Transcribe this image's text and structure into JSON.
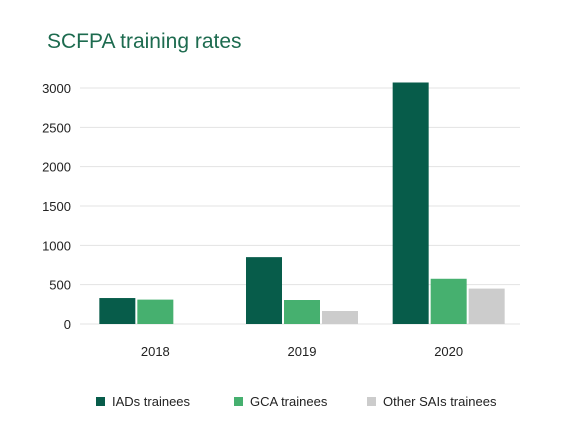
{
  "chart_data": {
    "type": "bar",
    "title": "SCFPA training rates",
    "categories": [
      "2018",
      "2019",
      "2020"
    ],
    "series": [
      {
        "name": "IADs trainees",
        "values": [
          330,
          850,
          3070
        ],
        "color": "#075c4a"
      },
      {
        "name": "GCA trainees",
        "values": [
          310,
          305,
          575
        ],
        "color": "#46b06f"
      },
      {
        "name": "Other SAIs trainees",
        "values": [
          null,
          165,
          450
        ],
        "color": "#cccccc"
      }
    ],
    "yticks": [
      0,
      500,
      1000,
      1500,
      2000,
      2500,
      3000
    ],
    "ylim": [
      0,
      3000
    ],
    "xlabel": "",
    "ylabel": "",
    "grid": true,
    "legend": "bottom"
  }
}
